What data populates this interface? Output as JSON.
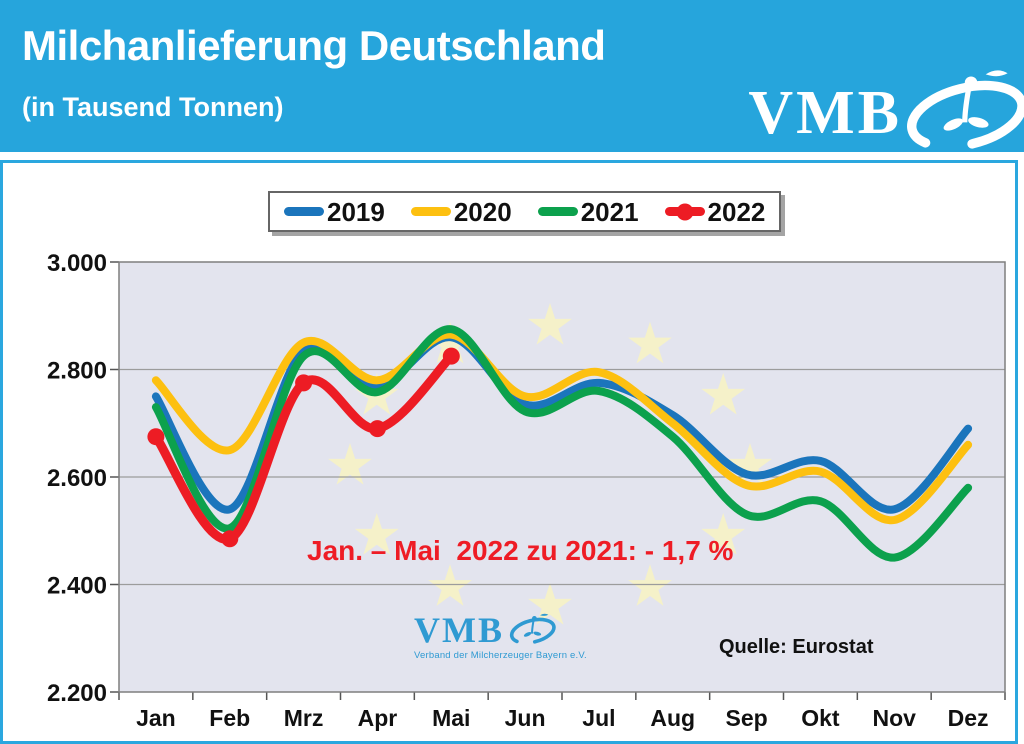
{
  "header": {
    "title": "Milchanlieferung Deutschland",
    "subtitle": "(in Tausend Tonnen)",
    "logo_text": "VMB"
  },
  "chart_data": {
    "type": "line",
    "title": "Milchanlieferung Deutschland (in Tausend Tonnen)",
    "categories": [
      "Jan",
      "Feb",
      "Mrz",
      "Apr",
      "Mai",
      "Jun",
      "Jul",
      "Aug",
      "Sep",
      "Okt",
      "Nov",
      "Dez"
    ],
    "series": [
      {
        "name": "2019",
        "color": "#1b75bc",
        "marker": false,
        "values": [
          2750,
          2540,
          2835,
          2770,
          2860,
          2735,
          2775,
          2715,
          2605,
          2630,
          2540,
          2690
        ]
      },
      {
        "name": "2020",
        "color": "#fdc010",
        "marker": false,
        "values": [
          2780,
          2650,
          2850,
          2780,
          2865,
          2750,
          2795,
          2700,
          2585,
          2610,
          2520,
          2660
        ]
      },
      {
        "name": "2021",
        "color": "#0ca14d",
        "marker": false,
        "values": [
          2730,
          2505,
          2825,
          2758,
          2875,
          2722,
          2760,
          2675,
          2530,
          2555,
          2450,
          2580
        ]
      },
      {
        "name": "2022",
        "color": "#ed1c24",
        "marker": true,
        "values": [
          2675,
          2485,
          2775,
          2690,
          2825
        ]
      }
    ],
    "ylim": [
      2200,
      3000
    ],
    "ytick_step": 200,
    "ytick_labels": [
      "3.000",
      "2.800",
      "2.600",
      "2.400",
      "2.200"
    ],
    "grid": true,
    "legend_position": "top",
    "annotation": "Jan. – Mai  2022 zu 2021: - 1,7 %",
    "source": "Quelle: Eurostat",
    "watermark": {
      "logo_text": "VMB",
      "org": "Verband der Milcherzeuger Bayern e.V."
    }
  },
  "colors": {
    "header_blue": "#26a5dc",
    "box_border_blue": "#2aa7df",
    "plot_bg": "#e3e4ee",
    "gridline": "#9c9c9c",
    "plot_border": "#7f7f7f",
    "star_yellow": "#f5f1c9",
    "annotation_red": "#ee1c25",
    "axis_text": "#111111",
    "legend_border": "#666666",
    "logo_blue": "#2f9ad2"
  }
}
